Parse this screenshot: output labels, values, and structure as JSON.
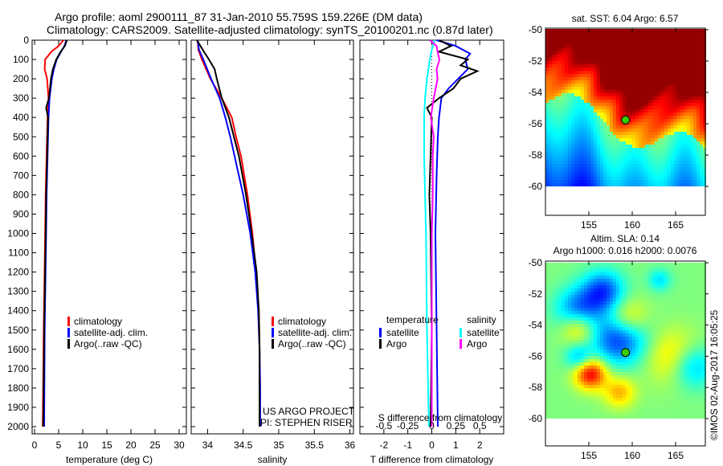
{
  "header": {
    "line1": "Argo profile: aoml 2900111_87 31-Jan-2010 55.759S 159.226E (DM data)",
    "line2": "Climatology: CARS2009. Satellite-adjusted climatology: synTS_20100201.nc (0.87d later)"
  },
  "colors": {
    "climatology": "#ff0000",
    "satellite": "#0000ff",
    "argo": "#000000",
    "s_satellite": "#00ffff",
    "s_argo": "#ff00ff"
  },
  "chart_data": [
    {
      "type": "line",
      "id": "temperature",
      "xlabel": "temperature (deg C)",
      "ylabel": "",
      "xlim": [
        -0.5,
        31.5
      ],
      "ylim": [
        2060,
        0
      ],
      "xticks": [
        0,
        5,
        10,
        15,
        20,
        25,
        30
      ],
      "yticks": [
        0,
        100,
        200,
        300,
        400,
        500,
        600,
        700,
        800,
        900,
        1000,
        1100,
        1200,
        1300,
        1400,
        1500,
        1600,
        1700,
        1800,
        1900,
        2000
      ],
      "legend": [
        "climatology",
        "satellite-adj. clim.",
        "Argo(..raw -QC)"
      ],
      "series": [
        {
          "name": "climatology",
          "color": "red",
          "depth": [
            0,
            30,
            60,
            100,
            150,
            200,
            300,
            400,
            600,
            800,
            1000,
            1500,
            2000
          ],
          "values": [
            6.0,
            5.0,
            3.5,
            2.2,
            2.1,
            2.6,
            2.9,
            2.7,
            2.5,
            2.3,
            2.2,
            1.9,
            1.7
          ]
        },
        {
          "name": "satellite-adj. clim.",
          "color": "blue",
          "depth": [
            0,
            30,
            60,
            100,
            150,
            200,
            300,
            400,
            600,
            800,
            1000,
            1500,
            2000
          ],
          "values": [
            6.6,
            6.2,
            5.5,
            4.6,
            4.0,
            3.6,
            3.1,
            2.9,
            2.7,
            2.5,
            2.4,
            2.1,
            2.0
          ]
        },
        {
          "name": "Argo(..raw -QC)",
          "color": "black",
          "depth": [
            0,
            30,
            60,
            100,
            150,
            200,
            300,
            350,
            400,
            600,
            800,
            1000,
            1500,
            2000
          ],
          "values": [
            6.7,
            6.3,
            5.4,
            4.5,
            3.8,
            3.4,
            3.0,
            2.4,
            2.8,
            2.6,
            2.4,
            2.3,
            2.0,
            1.8
          ]
        }
      ]
    },
    {
      "type": "line",
      "id": "salinity",
      "xlabel": "salinity",
      "xlim": [
        33.77,
        36.05
      ],
      "ylim": [
        2060,
        0
      ],
      "xticks": [
        34,
        34.5,
        35,
        35.5,
        36
      ],
      "legend": [
        "climatology",
        "satellite-adj. clim.",
        "Argo(..raw -QC)"
      ],
      "annotation": [
        "US ARGO PROJECT",
        "PI: STEPHEN RISER"
      ],
      "series": [
        {
          "name": "climatology",
          "color": "red",
          "depth": [
            0,
            50,
            100,
            200,
            300,
            400,
            500,
            600,
            800,
            1000,
            1200,
            1400,
            1600,
            1800,
            2000
          ],
          "values": [
            33.86,
            33.87,
            33.92,
            34.04,
            34.2,
            34.34,
            34.4,
            34.47,
            34.56,
            34.63,
            34.68,
            34.72,
            34.73,
            34.73,
            34.73
          ]
        },
        {
          "name": "satellite-adj. clim.",
          "color": "blue",
          "depth": [
            0,
            50,
            100,
            200,
            300,
            400,
            500,
            600,
            800,
            1000,
            1200,
            1400,
            1600,
            1800,
            2000
          ],
          "values": [
            33.86,
            33.88,
            33.94,
            34.05,
            34.17,
            34.25,
            34.32,
            34.38,
            34.5,
            34.6,
            34.67,
            34.71,
            34.73,
            34.74,
            34.74
          ]
        },
        {
          "name": "Argo(..raw -QC)",
          "color": "black",
          "depth": [
            0,
            30,
            60,
            100,
            150,
            200,
            300,
            400,
            500,
            600,
            800,
            1000,
            1200,
            1400,
            1600,
            1800,
            2000
          ],
          "values": [
            33.85,
            33.9,
            33.95,
            34.02,
            34.1,
            34.13,
            34.2,
            34.3,
            34.37,
            34.44,
            34.54,
            34.62,
            34.69,
            34.72,
            34.73,
            34.73,
            34.73
          ]
        }
      ]
    },
    {
      "type": "line",
      "id": "difference",
      "xlabel": "T difference from climatology",
      "x2label": "S difference from climatology",
      "xlim": [
        -3,
        3
      ],
      "x2lim": [
        -0.75,
        0.75
      ],
      "xticks": [
        -2,
        -1,
        0,
        1,
        2
      ],
      "x2ticks": [
        -0.5,
        -0.25,
        0,
        0.25,
        0.5
      ],
      "legend": {
        "temperature": [
          "satellite",
          "Argo"
        ],
        "salinity": [
          "satellite",
          "Argo"
        ],
        "headers": [
          "temperature",
          "salinity"
        ]
      },
      "series": [
        {
          "name": "T satellite",
          "color": "blue",
          "depth": [
            0,
            30,
            70,
            100,
            150,
            200,
            250,
            300,
            400,
            500,
            700,
            1000,
            1500,
            2000
          ],
          "values": [
            0.2,
            1.0,
            1.6,
            1.4,
            1.5,
            1.1,
            0.7,
            0.4,
            0.3,
            0.25,
            0.2,
            0.15,
            0.2,
            0.25
          ]
        },
        {
          "name": "T Argo",
          "color": "black",
          "depth": [
            0,
            30,
            60,
            100,
            130,
            160,
            200,
            250,
            300,
            350,
            400,
            600,
            800,
            1000,
            1500,
            2000
          ],
          "values": [
            0.3,
            0.8,
            0.3,
            1.5,
            1.2,
            1.9,
            1.2,
            0.9,
            0.3,
            -0.2,
            0.0,
            -0.05,
            -0.1,
            -0.05,
            0.0,
            -0.05
          ]
        },
        {
          "name": "S satellite",
          "color": "cyan",
          "depth": [
            0,
            50,
            100,
            200,
            300,
            400,
            600,
            800,
            1000,
            1500,
            2000
          ],
          "values": [
            0.03,
            0.0,
            -0.02,
            -0.05,
            -0.07,
            -0.08,
            -0.08,
            -0.07,
            -0.06,
            -0.05,
            -0.03
          ]
        },
        {
          "name": "S Argo",
          "color": "magenta",
          "depth": [
            0,
            30,
            60,
            100,
            150,
            200,
            300,
            400,
            500,
            600,
            800,
            1000,
            1500,
            2000
          ],
          "values": [
            -0.02,
            0.05,
            0.06,
            0.08,
            0.05,
            0.06,
            0.02,
            -0.01,
            0.02,
            0.01,
            0.01,
            0.0,
            0.0,
            0.0
          ]
        }
      ]
    },
    {
      "type": "heatmap",
      "id": "sst-map",
      "title": "sat. SST: 6.04  Argo: 6.57",
      "xticks": [
        155,
        160,
        165
      ],
      "yticks": [
        -50,
        -52,
        -54,
        -56,
        -58,
        -60
      ],
      "xlim": [
        150.4,
        168.5
      ],
      "ylim": [
        -61.8,
        -49.9
      ],
      "argo_position": [
        159.226,
        -55.759
      ]
    },
    {
      "type": "heatmap",
      "id": "sla-map",
      "title": "Altim. SLA: 0.14",
      "subtitle": "Argo h1000: 0.016 h2000: 0.0076",
      "xticks": [
        155,
        160,
        165
      ],
      "yticks": [
        -50,
        -52,
        -54,
        -56,
        -58,
        -60
      ],
      "xlim": [
        150.4,
        168.5
      ],
      "ylim": [
        -61.8,
        -49.9
      ],
      "argo_position": [
        159.226,
        -55.759
      ]
    }
  ],
  "footer": {
    "credit": "©IMOS 02-Aug-2017 16:05:25"
  }
}
